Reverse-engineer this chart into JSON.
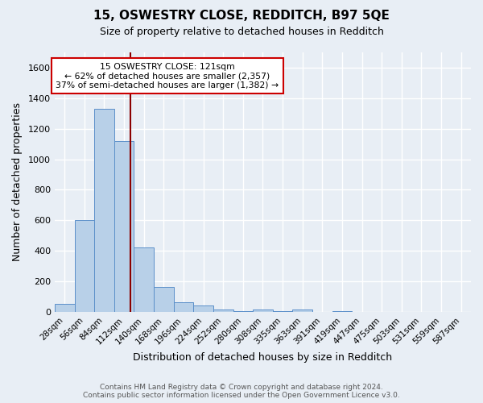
{
  "title": "15, OSWESTRY CLOSE, REDDITCH, B97 5QE",
  "subtitle": "Size of property relative to detached houses in Redditch",
  "xlabel": "Distribution of detached houses by size in Redditch",
  "ylabel": "Number of detached properties",
  "footer_line1": "Contains HM Land Registry data © Crown copyright and database right 2024.",
  "footer_line2": "Contains public sector information licensed under the Open Government Licence v3.0.",
  "categories": [
    "28sqm",
    "56sqm",
    "84sqm",
    "112sqm",
    "140sqm",
    "168sqm",
    "196sqm",
    "224sqm",
    "252sqm",
    "280sqm",
    "308sqm",
    "335sqm",
    "363sqm",
    "391sqm",
    "419sqm",
    "447sqm",
    "475sqm",
    "503sqm",
    "531sqm",
    "559sqm",
    "587sqm"
  ],
  "bar_values": [
    55,
    600,
    1330,
    1120,
    420,
    165,
    65,
    40,
    17,
    5,
    17,
    5,
    17,
    0,
    5,
    0,
    0,
    0,
    0,
    0,
    0
  ],
  "bar_color": "#b8d0e8",
  "bar_edge_color": "#5b8fc9",
  "vline_color": "#8b0000",
  "ylim": [
    0,
    1700
  ],
  "yticks": [
    0,
    200,
    400,
    600,
    800,
    1000,
    1200,
    1400,
    1600
  ],
  "annotation_text": "15 OSWESTRY CLOSE: 121sqm\n← 62% of detached houses are smaller (2,357)\n37% of semi-detached houses are larger (1,382) →",
  "annotation_box_color": "#ffffff",
  "annotation_box_edge": "#cc0000",
  "bg_color": "#e8eef5",
  "grid_color": "#ffffff",
  "title_fontsize": 11,
  "subtitle_fontsize": 9
}
